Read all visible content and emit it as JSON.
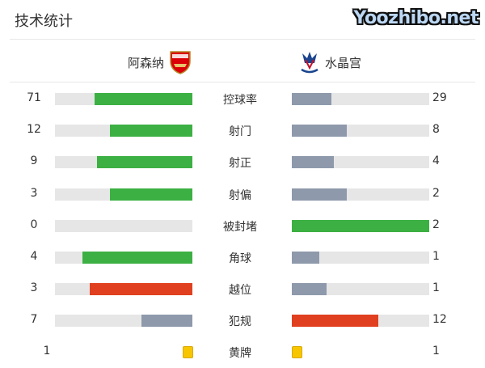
{
  "title": "技术统计",
  "home": {
    "name": "阿森纳",
    "logo_text": "Arsenal",
    "logo_color": "#db0007"
  },
  "away": {
    "name": "水晶宫",
    "logo_color": "#1b458f"
  },
  "colors": {
    "green": "#3cb043",
    "gray": "#8e99ab",
    "red": "#e0401f",
    "track": "#e6e6e6",
    "yellow": "#f7c600"
  },
  "stats": [
    {
      "label": "控球率",
      "home": "71",
      "away": "29",
      "home_fill": 0.71,
      "away_fill": 0.29,
      "home_color": "green",
      "away_color": "gray"
    },
    {
      "label": "射门",
      "home": "12",
      "away": "8",
      "home_fill": 0.6,
      "away_fill": 0.4,
      "home_color": "green",
      "away_color": "gray"
    },
    {
      "label": "射正",
      "home": "9",
      "away": "4",
      "home_fill": 0.692,
      "away_fill": 0.308,
      "home_color": "green",
      "away_color": "gray"
    },
    {
      "label": "射偏",
      "home": "3",
      "away": "2",
      "home_fill": 0.6,
      "away_fill": 0.4,
      "home_color": "green",
      "away_color": "gray"
    },
    {
      "label": "被封堵",
      "home": "0",
      "away": "2",
      "home_fill": 0,
      "away_fill": 1,
      "home_color": "gray",
      "away_color": "green"
    },
    {
      "label": "角球",
      "home": "4",
      "away": "1",
      "home_fill": 0.8,
      "away_fill": 0.2,
      "home_color": "green",
      "away_color": "gray"
    },
    {
      "label": "越位",
      "home": "3",
      "away": "1",
      "home_fill": 0.75,
      "away_fill": 0.25,
      "home_color": "red",
      "away_color": "gray"
    },
    {
      "label": "犯规",
      "home": "7",
      "away": "12",
      "home_fill": 0.368,
      "away_fill": 0.632,
      "home_color": "gray",
      "away_color": "red"
    }
  ],
  "yellow_cards": {
    "label": "黄牌",
    "home": "1",
    "away": "1"
  },
  "watermark": "Yoozhibo.net"
}
